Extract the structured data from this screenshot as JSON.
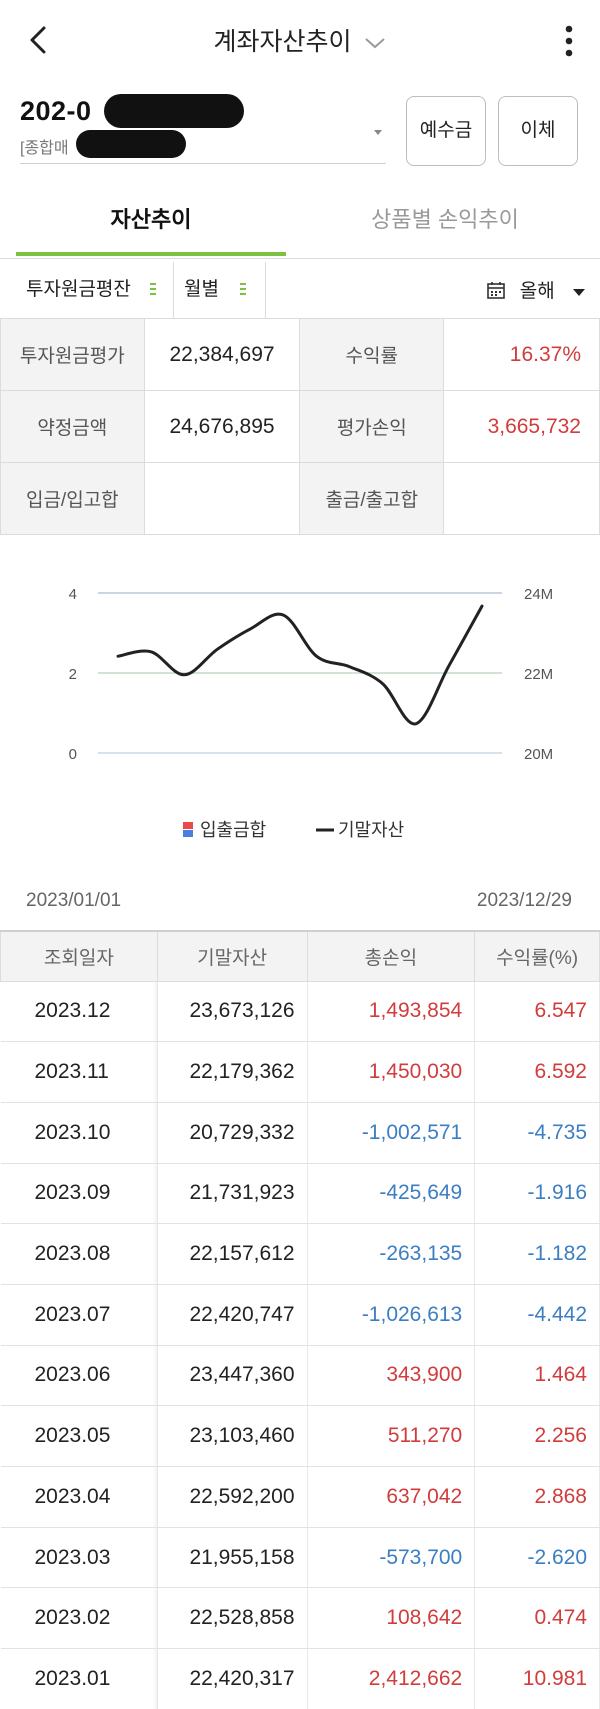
{
  "header": {
    "title": "계좌자산추이"
  },
  "account": {
    "number": "202-0",
    "type_label": "[종합매"
  },
  "buttons": {
    "deposit": "예수금",
    "transfer": "이체"
  },
  "tabs": {
    "active": "자산추이",
    "inactive": "상품별 손익추이"
  },
  "filters": {
    "basis": "투자원금평잔",
    "interval": "월별",
    "period": "올해"
  },
  "summary": {
    "principal_label": "투자원금평가",
    "principal_value": "22,384,697",
    "return_label": "수익률",
    "return_value": "16.37%",
    "contract_label": "약정금액",
    "contract_value": "24,676,895",
    "pnl_label": "평가손익",
    "pnl_value": "3,665,732",
    "in_label": "입금/입고합",
    "in_value": "",
    "out_label": "출금/출고합",
    "out_value": ""
  },
  "chart_data": {
    "type": "line",
    "x": [
      "2023.01",
      "2023.02",
      "2023.03",
      "2023.04",
      "2023.05",
      "2023.06",
      "2023.07",
      "2023.08",
      "2023.09",
      "2023.10",
      "2023.11",
      "2023.12"
    ],
    "series": [
      {
        "name": "입출금합",
        "values": [
          0,
          0,
          0,
          0,
          0,
          0,
          0,
          0,
          0,
          0,
          0,
          0
        ],
        "axis": "left"
      },
      {
        "name": "기말자산",
        "values": [
          22420317,
          22528858,
          21955158,
          22592200,
          23103460,
          23447360,
          22420747,
          22157612,
          21731923,
          20729332,
          22179362,
          23673126
        ],
        "axis": "right"
      }
    ],
    "left_axis": {
      "ticks": [
        "0",
        "2",
        "4"
      ],
      "range": [
        0,
        4
      ]
    },
    "right_axis": {
      "ticks": [
        "20M",
        "22M",
        "24M"
      ],
      "range": [
        20000000,
        24000000
      ]
    },
    "legend_position": "bottom",
    "grid": true,
    "colors": {
      "line": "#222222",
      "grid_top": "#b9c8dc",
      "grid_mid": "#c5d8c8",
      "grid_base": "#c9d9e6",
      "legend_red": "#e84a4a",
      "legend_blue": "#4a7fe0"
    }
  },
  "date_range": {
    "start": "2023/01/01",
    "end": "2023/12/29"
  },
  "table": {
    "headers": [
      "조회일자",
      "기말자산",
      "총손익",
      "수익률(%)"
    ],
    "rows": [
      {
        "date": "2023.12",
        "asset": "23,673,126",
        "pnl": "1,493,854",
        "rate": "6.547",
        "sign": "pos"
      },
      {
        "date": "2023.11",
        "asset": "22,179,362",
        "pnl": "1,450,030",
        "rate": "6.592",
        "sign": "pos"
      },
      {
        "date": "2023.10",
        "asset": "20,729,332",
        "pnl": "-1,002,571",
        "rate": "-4.735",
        "sign": "neg"
      },
      {
        "date": "2023.09",
        "asset": "21,731,923",
        "pnl": "-425,649",
        "rate": "-1.916",
        "sign": "neg"
      },
      {
        "date": "2023.08",
        "asset": "22,157,612",
        "pnl": "-263,135",
        "rate": "-1.182",
        "sign": "neg"
      },
      {
        "date": "2023.07",
        "asset": "22,420,747",
        "pnl": "-1,026,613",
        "rate": "-4.442",
        "sign": "neg"
      },
      {
        "date": "2023.06",
        "asset": "23,447,360",
        "pnl": "343,900",
        "rate": "1.464",
        "sign": "pos"
      },
      {
        "date": "2023.05",
        "asset": "23,103,460",
        "pnl": "511,270",
        "rate": "2.256",
        "sign": "pos"
      },
      {
        "date": "2023.04",
        "asset": "22,592,200",
        "pnl": "637,042",
        "rate": "2.868",
        "sign": "pos"
      },
      {
        "date": "2023.03",
        "asset": "21,955,158",
        "pnl": "-573,700",
        "rate": "-2.620",
        "sign": "neg"
      },
      {
        "date": "2023.02",
        "asset": "22,528,858",
        "pnl": "108,642",
        "rate": "0.474",
        "sign": "pos"
      },
      {
        "date": "2023.01",
        "asset": "22,420,317",
        "pnl": "2,412,662",
        "rate": "10.981",
        "sign": "pos"
      }
    ]
  },
  "icons": {
    "back": "chevron-left-icon",
    "title_dropdown": "chevron-down-icon",
    "more": "more-vertical-icon",
    "calendar": "calendar-icon"
  }
}
